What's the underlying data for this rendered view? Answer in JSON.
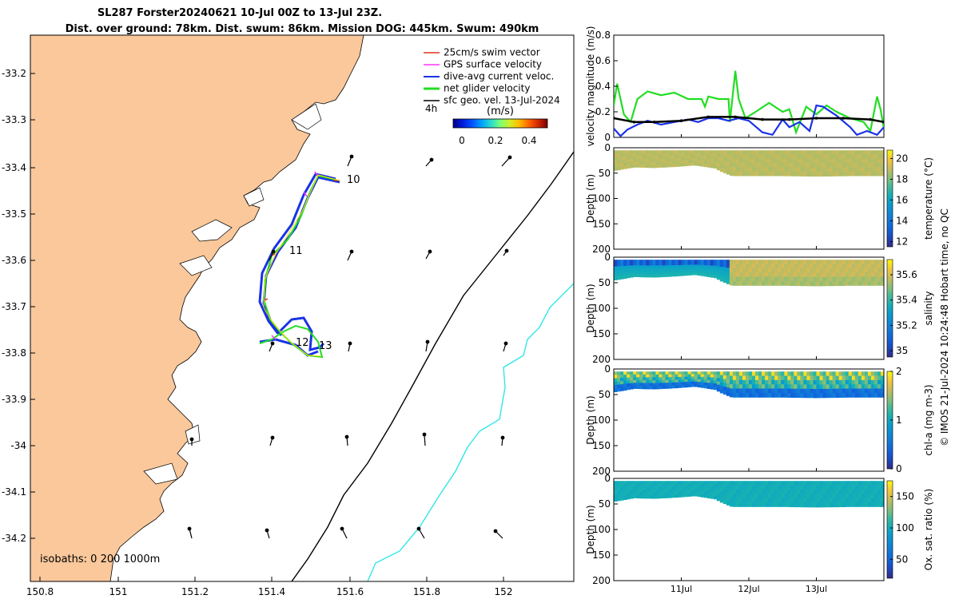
{
  "title": {
    "line1": "SL287 Forster20240621 10-Jul 00Z to 13-Jul 23Z.",
    "line2": "Dist. over ground: 78km. Dist. swum: 86km. Mission DOG: 445km. Swum: 490km"
  },
  "colors": {
    "land": "#fac89b",
    "swim_vector": "#e0301e",
    "gps_velocity": "#ff33ff",
    "current": "#1a33e6",
    "net_velocity": "#22dd22",
    "sfc_geo": "#000000",
    "isobath_200": "#000000",
    "isobath_1000": "#33e6e6"
  },
  "map": {
    "xticks": [
      "150.8",
      "151",
      "151.2",
      "151.4",
      "151.6",
      "151.8",
      "152"
    ],
    "yticks": [
      "-33.2",
      "-33.3",
      "-33.4",
      "-33.5",
      "-33.6",
      "-33.7",
      "-33.8",
      "-33.9",
      "-34",
      "-34.1",
      "-34.2"
    ],
    "legend": {
      "swim": "25cm/s swim vector",
      "gps": "GPS surface velocity",
      "current": "dive-avg current veloc.",
      "net": "net glider velocity",
      "geo": "sfc geo. vel. 13-Jul-2024"
    },
    "interval_label": "4h",
    "colorbar_unit": "(m/s)",
    "colorbar_ticks": [
      "0",
      "0.2",
      "0.4"
    ],
    "day_labels": [
      "10",
      "11",
      "12",
      "13"
    ],
    "isobath_text": "isobaths: 0   200  1000m"
  },
  "chart_data": [
    {
      "type": "line",
      "title": "",
      "ylabel": "velocity magnitude (m/s)",
      "ylim": [
        0,
        0.8
      ],
      "yticks": [
        "0",
        "0.2",
        "0.4",
        "0.6",
        "0.8"
      ],
      "x_range_days": [
        0,
        4
      ],
      "series": [
        {
          "name": "net glider velocity",
          "x": [
            0,
            0.05,
            0.15,
            0.25,
            0.35,
            0.5,
            0.7,
            0.9,
            1.1,
            1.3,
            1.35,
            1.4,
            1.55,
            1.7,
            1.72,
            1.8,
            1.85,
            1.95,
            2.1,
            2.3,
            2.5,
            2.6,
            2.7,
            2.85,
            3.0,
            3.15,
            3.3,
            3.5,
            3.7,
            3.8,
            3.9,
            3.95,
            4.0
          ],
          "values": [
            0.25,
            0.42,
            0.18,
            0.12,
            0.3,
            0.36,
            0.33,
            0.35,
            0.3,
            0.3,
            0.24,
            0.32,
            0.3,
            0.3,
            0.12,
            0.52,
            0.3,
            0.15,
            0.2,
            0.27,
            0.2,
            0.22,
            0.04,
            0.24,
            0.18,
            0.25,
            0.2,
            0.15,
            0.12,
            0.05,
            0.32,
            0.22,
            0.07
          ]
        },
        {
          "name": "dive-avg current veloc.",
          "x": [
            0,
            0.1,
            0.2,
            0.35,
            0.5,
            0.7,
            0.9,
            1.1,
            1.25,
            1.4,
            1.55,
            1.7,
            1.85,
            2.0,
            2.2,
            2.35,
            2.5,
            2.6,
            2.75,
            2.9,
            3.0,
            3.1,
            3.3,
            3.5,
            3.6,
            3.75,
            3.9,
            4.0
          ],
          "values": [
            0.07,
            0.01,
            0.06,
            0.1,
            0.13,
            0.1,
            0.12,
            0.14,
            0.12,
            0.15,
            0.15,
            0.13,
            0.15,
            0.13,
            0.04,
            0.02,
            0.14,
            0.08,
            0.12,
            0.05,
            0.25,
            0.24,
            0.17,
            0.08,
            0.02,
            0.05,
            0.02,
            0.08
          ]
        },
        {
          "name": "sfc geo. vel.",
          "x": [
            0,
            0.3,
            0.6,
            1.0,
            1.4,
            1.8,
            2.2,
            2.6,
            3.0,
            3.4,
            3.8,
            4.0
          ],
          "values": [
            0.15,
            0.12,
            0.12,
            0.13,
            0.16,
            0.16,
            0.14,
            0.14,
            0.15,
            0.15,
            0.14,
            0.12
          ]
        }
      ]
    },
    {
      "type": "heatmap",
      "ylabel": "Depth (m)",
      "clabel": "temperature (°C)",
      "ylim": [
        0,
        200
      ],
      "yticks": [
        "0",
        "50",
        "100",
        "150",
        "200"
      ],
      "clim": [
        11.5,
        20.8
      ],
      "cticks": [
        "12",
        "14",
        "16",
        "18",
        "20"
      ],
      "max_depth_x": [
        0,
        0.3,
        0.6,
        0.9,
        1.2,
        1.5,
        1.6,
        1.75,
        2.0,
        2.5,
        3.0,
        3.5,
        4.0
      ],
      "max_depth": [
        40,
        33,
        34,
        32,
        29,
        35,
        42,
        50,
        50,
        50,
        51,
        50,
        50
      ],
      "profile_values": [
        18.6,
        18.8,
        18.6,
        18.7,
        18.9,
        19.0,
        18.8
      ]
    },
    {
      "type": "heatmap",
      "ylabel": "Depth (m)",
      "clabel": "salinity",
      "ylim": [
        0,
        200
      ],
      "yticks": [
        "0",
        "50",
        "100",
        "150",
        "200"
      ],
      "clim": [
        34.95,
        35.72
      ],
      "cticks": [
        "35",
        "35.2",
        "35.4",
        "35.6"
      ],
      "max_depth_x": [
        0,
        0.3,
        0.6,
        0.9,
        1.2,
        1.5,
        1.6,
        1.75,
        2.0,
        2.5,
        3.0,
        3.5,
        4.0
      ],
      "max_depth": [
        40,
        33,
        34,
        32,
        29,
        35,
        42,
        50,
        50,
        50,
        51,
        50,
        50
      ],
      "profile_values": [
        35.1,
        35.25,
        35.35,
        35.5,
        35.55,
        35.5
      ]
    },
    {
      "type": "heatmap",
      "ylabel": "Depth (m)",
      "clabel": "chl-a (mg m-3)",
      "ylim": [
        0,
        200
      ],
      "yticks": [
        "0",
        "50",
        "100",
        "150",
        "200"
      ],
      "clim": [
        0,
        2
      ],
      "cticks": [
        "0",
        "1",
        "2"
      ],
      "max_depth_x": [
        0,
        0.3,
        0.6,
        0.9,
        1.2,
        1.5,
        1.6,
        1.75,
        2.0,
        2.5,
        3.0,
        3.5,
        4.0
      ],
      "max_depth": [
        40,
        33,
        34,
        32,
        29,
        35,
        42,
        50,
        50,
        50,
        51,
        50,
        50
      ],
      "profile_values": [
        1.9,
        1.5,
        1.0,
        0.6,
        0.3
      ]
    },
    {
      "type": "heatmap",
      "ylabel": "Depth (m)",
      "clabel": "Ox. sat. ratio (%)",
      "ylim": [
        0,
        200
      ],
      "yticks": [
        "0",
        "50",
        "100",
        "150",
        "200"
      ],
      "clim": [
        20,
        175
      ],
      "cticks": [
        "50",
        "100",
        "150"
      ],
      "xticks": [
        "11Jul",
        "12Jul",
        "13Jul"
      ],
      "max_depth_x": [
        0,
        0.3,
        0.6,
        0.9,
        1.2,
        1.5,
        1.6,
        1.75,
        2.0,
        2.5,
        3.0,
        3.5,
        4.0
      ],
      "max_depth": [
        40,
        33,
        34,
        32,
        29,
        35,
        42,
        50,
        50,
        50,
        51,
        50,
        50
      ],
      "profile_values": [
        110,
        108,
        105,
        104,
        106
      ]
    }
  ],
  "footer": {
    "credit": "© IMOS 21-Jul-2024 10:24:48 Hobart time, no QC"
  }
}
